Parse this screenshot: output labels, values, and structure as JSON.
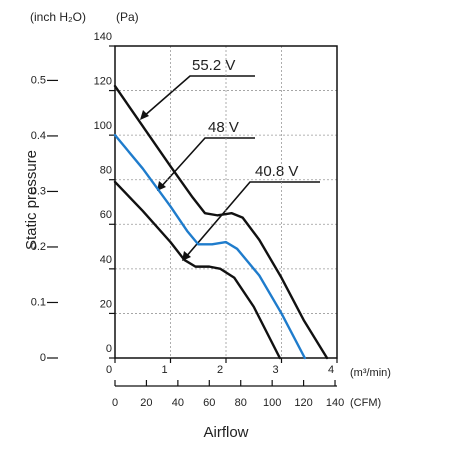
{
  "chart_data": {
    "type": "line",
    "title": "Airflow",
    "ylabel": "Static pressure",
    "xunit": "(m³/min)",
    "yunit": "(Pa)",
    "x2unit": "(CFM)",
    "y2unit": "(inch H₂O)",
    "xlim": [
      0,
      4
    ],
    "xticks": [
      0,
      1,
      2,
      3,
      4
    ],
    "ylim": [
      0,
      140
    ],
    "yticks": [
      0,
      20,
      40,
      60,
      80,
      100,
      120,
      140
    ],
    "x2lim": [
      0,
      141.26
    ],
    "x2ticks": [
      0,
      20,
      40,
      60,
      80,
      100,
      120,
      140
    ],
    "y2lim": [
      0,
      0.562
    ],
    "y2ticks": [
      0,
      0.1,
      0.2,
      0.3,
      0.4,
      0.5
    ],
    "grid": true,
    "series": [
      {
        "name": "55.2 V",
        "color": "#111111",
        "x": [
          0,
          0.5,
          1,
          1.4,
          1.62,
          1.85,
          2.1,
          2.3,
          2.6,
          3,
          3.4,
          3.82
        ],
        "values": [
          122,
          104,
          86,
          72,
          65,
          64,
          65,
          63,
          53,
          36,
          17,
          0
        ]
      },
      {
        "name": "48 V",
        "color": "#1f7ccc",
        "x": [
          0,
          0.5,
          1,
          1.3,
          1.5,
          1.75,
          2.0,
          2.2,
          2.6,
          3,
          3.42
        ],
        "values": [
          100,
          85,
          68,
          57,
          51,
          51,
          52,
          49,
          37,
          20,
          0
        ]
      },
      {
        "name": "40.8 V",
        "color": "#111111",
        "x": [
          0,
          0.5,
          1,
          1.25,
          1.45,
          1.7,
          1.9,
          2.15,
          2.5,
          2.97
        ],
        "values": [
          79,
          66,
          52,
          44,
          41,
          41,
          40,
          36,
          23,
          0
        ]
      }
    ]
  }
}
